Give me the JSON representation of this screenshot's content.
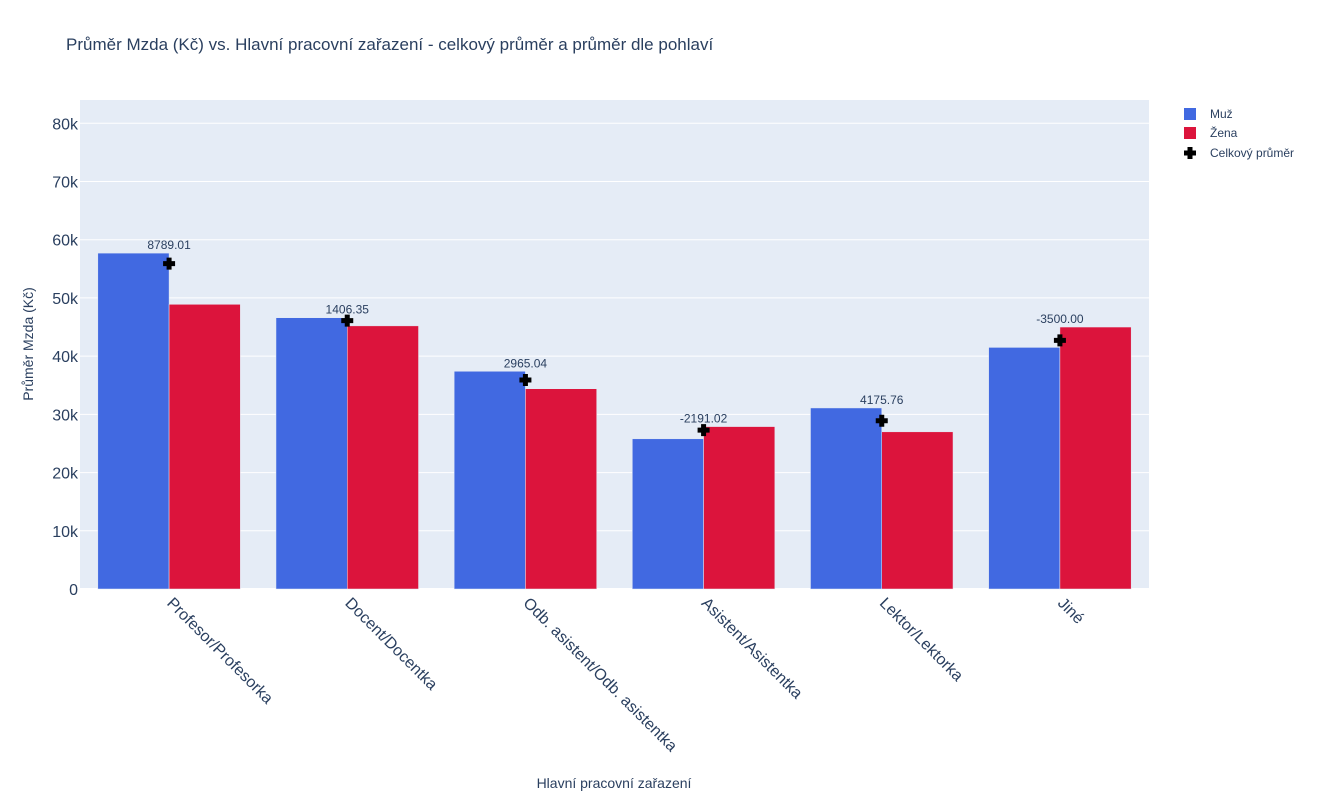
{
  "chart_data": {
    "type": "bar",
    "title": "Průměr Mzda (Kč) vs. Hlavní pracovní zařazení - celkový průměr a průměr dle pohlaví",
    "xlabel": "Hlavní pracovní zařazení",
    "ylabel": "Průměr Mzda (Kč)",
    "ylim": [
      0,
      84000
    ],
    "yticks": [
      0,
      10000,
      20000,
      30000,
      40000,
      50000,
      60000,
      70000,
      80000
    ],
    "ytick_labels": [
      "0",
      "10k",
      "20k",
      "30k",
      "40k",
      "50k",
      "60k",
      "70k",
      "80k"
    ],
    "categories": [
      "Profesor/Profesorka",
      "Docent/Docentka",
      "Odb. asistent/Odb. asistentka",
      "Asistent/Asistentka",
      "Lektor/Lektorka",
      "Jiné"
    ],
    "series": [
      {
        "name": "Muž",
        "type": "bar",
        "color": "#4169e1",
        "values": [
          57700,
          46600,
          37400,
          25800,
          31100,
          41500
        ]
      },
      {
        "name": "Žena",
        "type": "bar",
        "color": "#dc143c",
        "values": [
          48900,
          45200,
          34400,
          27900,
          27000,
          45000
        ]
      },
      {
        "name": "Celkový průměr",
        "type": "marker",
        "color": "#000000",
        "values": [
          55900,
          46100,
          35900,
          27300,
          28900,
          42700
        ]
      }
    ],
    "difference_labels": [
      "8789.01",
      "1406.35",
      "2965.04",
      "-2191.02",
      "4175.76",
      "-3500.00"
    ],
    "legend_position": "top-right",
    "grid": true
  }
}
